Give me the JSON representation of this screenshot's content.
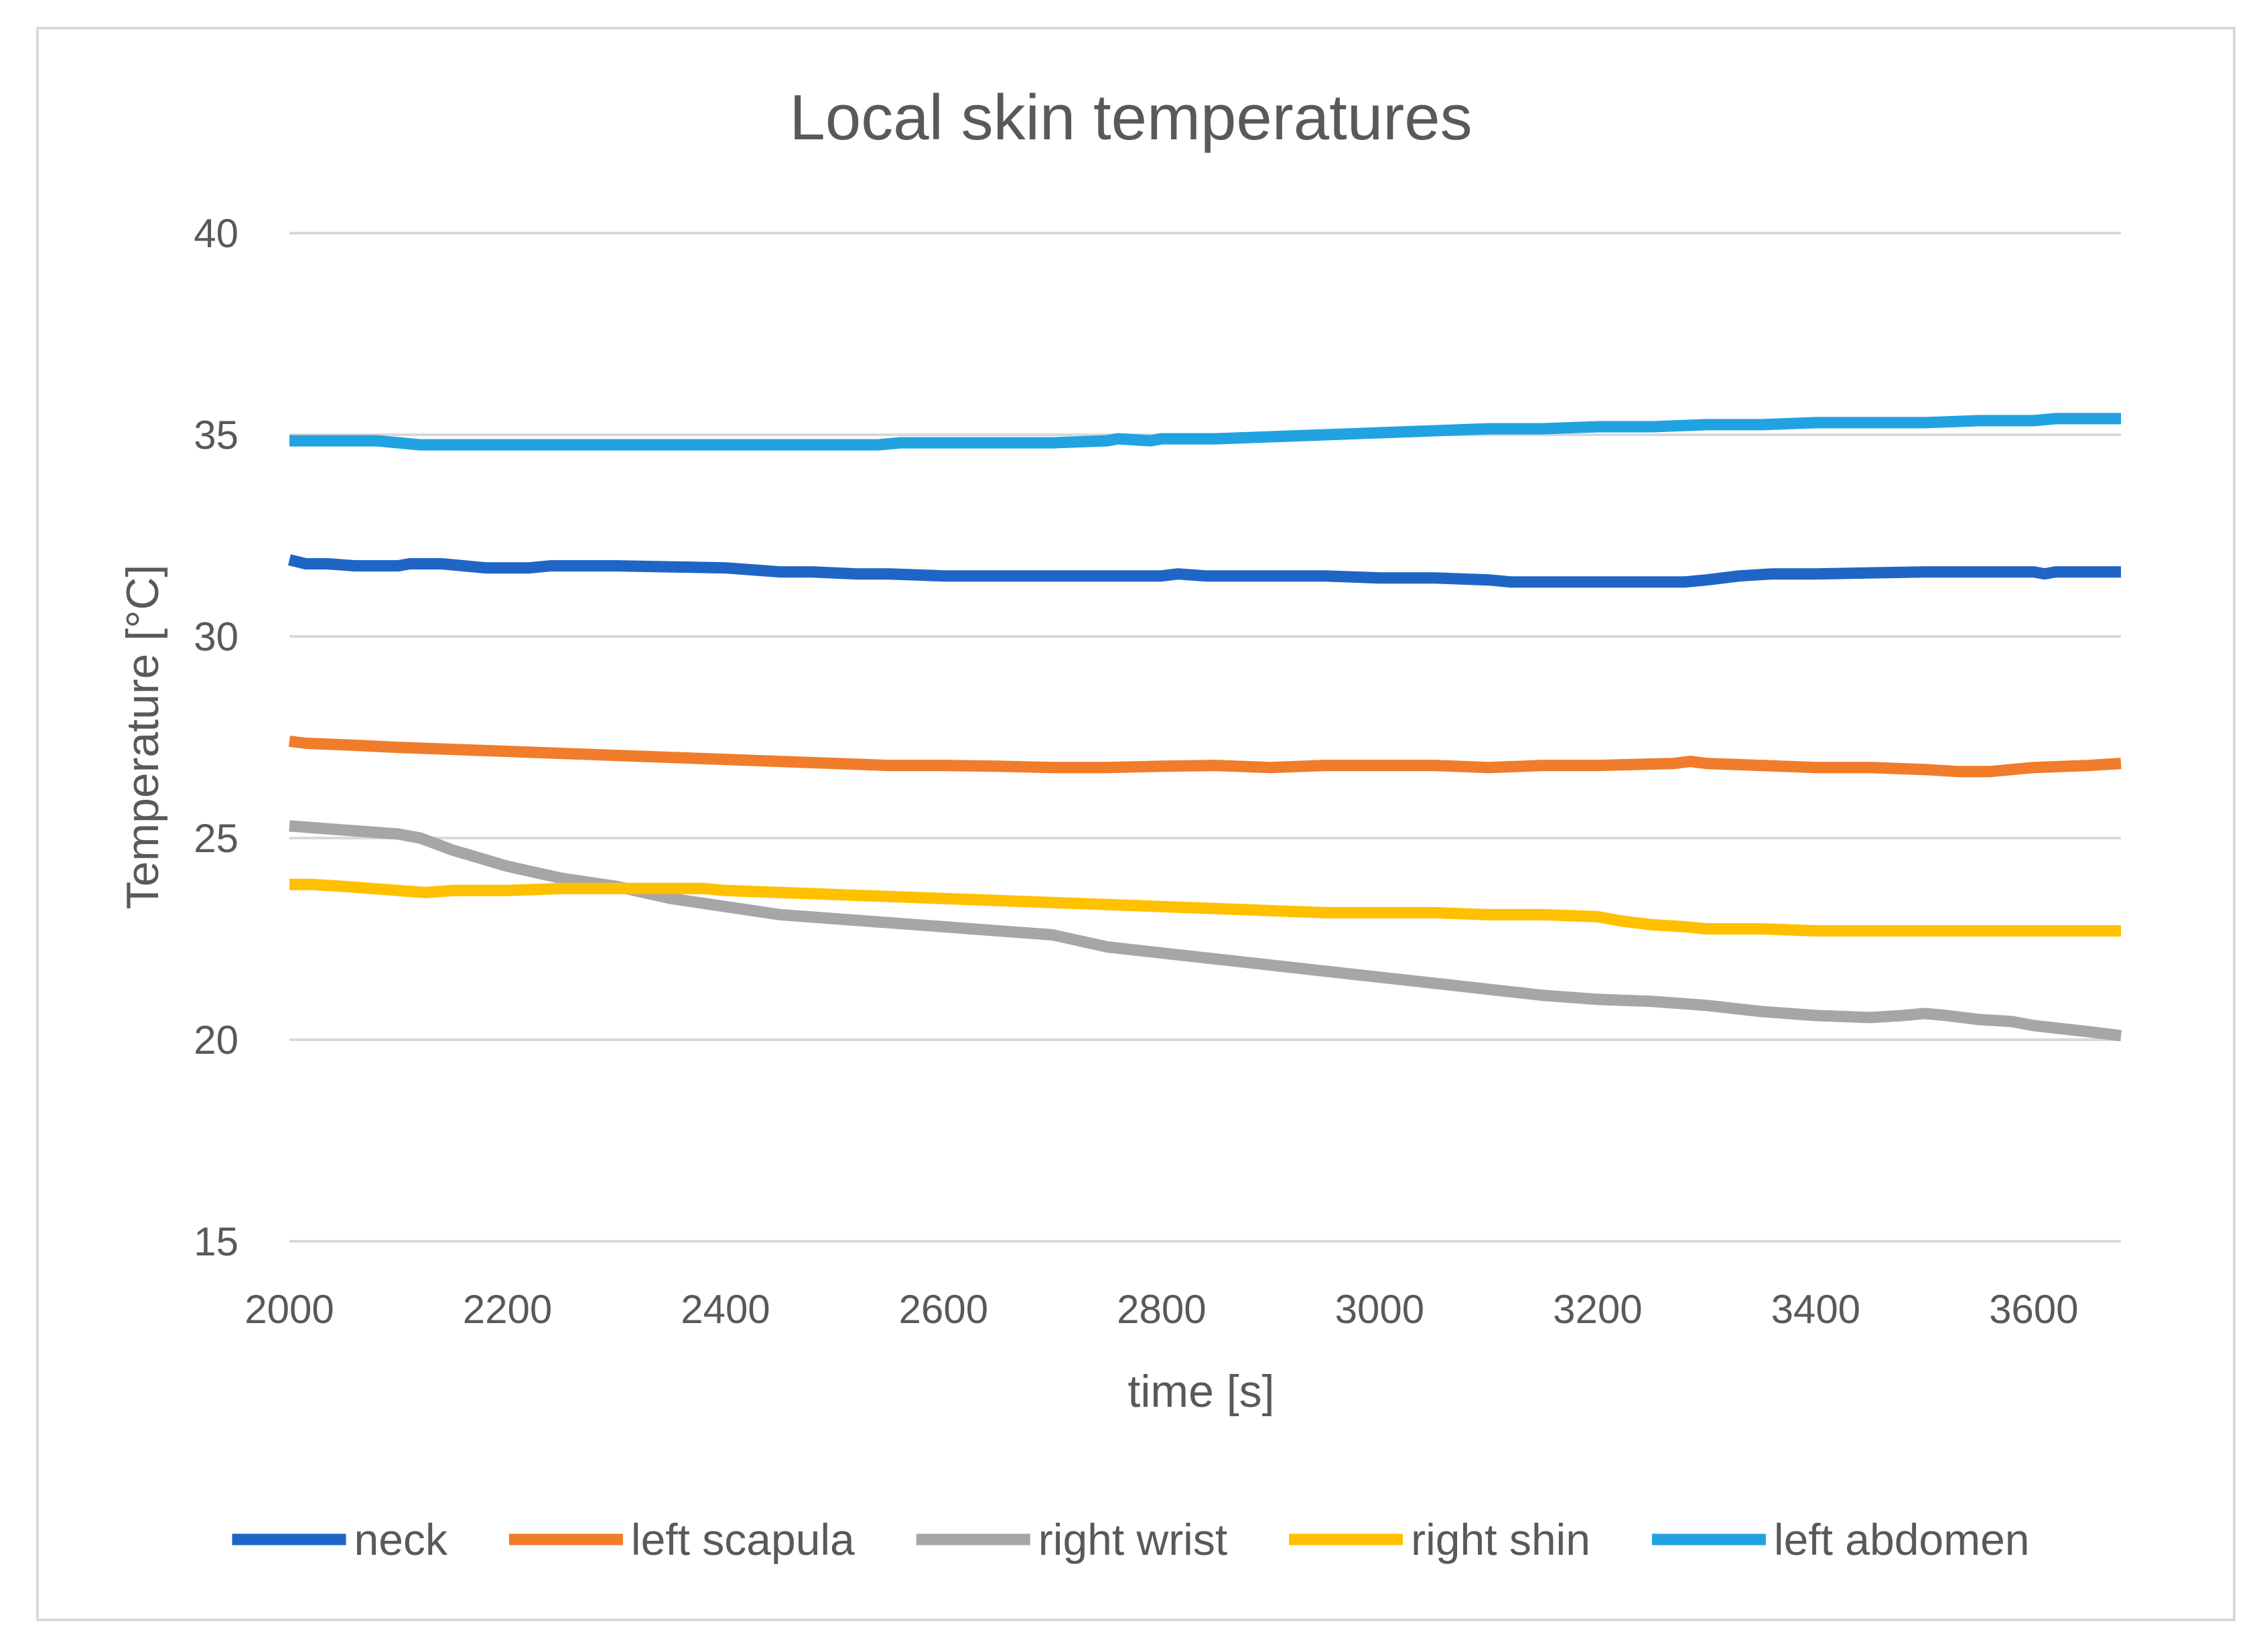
{
  "chart_data": {
    "type": "line",
    "title": "Local skin temperatures",
    "xlabel": "time [s]",
    "ylabel": "Temperature [°C]",
    "xlim": [
      2000,
      3680
    ],
    "ylim": [
      15,
      40
    ],
    "xticks": [
      2000,
      2200,
      2400,
      2600,
      2800,
      3000,
      3200,
      3400,
      3600
    ],
    "yticks": [
      15,
      20,
      25,
      30,
      35,
      40
    ],
    "grid": true,
    "legend_position": "bottom",
    "series": [
      {
        "name": "neck",
        "color": "#1f65c6",
        "x": [
          2000,
          2015,
          2035,
          2060,
          2100,
          2110,
          2140,
          2180,
          2220,
          2240,
          2280,
          2300,
          2400,
          2450,
          2480,
          2520,
          2550,
          2600,
          2700,
          2800,
          2815,
          2840,
          2900,
          2950,
          3000,
          3050,
          3100,
          3120,
          3200,
          3280,
          3300,
          3330,
          3360,
          3400,
          3500,
          3600,
          3610,
          3620,
          3680
        ],
        "values": [
          31.9,
          31.8,
          31.8,
          31.75,
          31.75,
          31.8,
          31.8,
          31.7,
          31.7,
          31.75,
          31.75,
          31.75,
          31.7,
          31.6,
          31.6,
          31.55,
          31.55,
          31.5,
          31.5,
          31.5,
          31.55,
          31.5,
          31.5,
          31.5,
          31.45,
          31.45,
          31.4,
          31.35,
          31.35,
          31.35,
          31.4,
          31.5,
          31.55,
          31.55,
          31.6,
          31.6,
          31.55,
          31.6,
          31.6
        ]
      },
      {
        "name": "left scapula",
        "color": "#f07c2c",
        "x": [
          2000,
          2015,
          2060,
          2100,
          2150,
          2200,
          2250,
          2300,
          2350,
          2400,
          2450,
          2500,
          2550,
          2600,
          2650,
          2700,
          2750,
          2800,
          2850,
          2900,
          2950,
          3000,
          3050,
          3100,
          3150,
          3200,
          3270,
          3285,
          3300,
          3350,
          3400,
          3450,
          3500,
          3530,
          3560,
          3600,
          3650,
          3680
        ],
        "values": [
          27.4,
          27.35,
          27.3,
          27.25,
          27.2,
          27.15,
          27.1,
          27.05,
          27.0,
          26.95,
          26.9,
          26.85,
          26.8,
          26.8,
          26.78,
          26.75,
          26.75,
          26.78,
          26.8,
          26.75,
          26.8,
          26.8,
          26.8,
          26.75,
          26.8,
          26.8,
          26.85,
          26.9,
          26.85,
          26.8,
          26.75,
          26.75,
          26.7,
          26.65,
          26.65,
          26.75,
          26.8,
          26.85
        ]
      },
      {
        "name": "right wrist",
        "color": "#a6a6a6",
        "x": [
          2000,
          2050,
          2100,
          2120,
          2150,
          2200,
          2250,
          2300,
          2350,
          2400,
          2450,
          2500,
          2550,
          2600,
          2650,
          2700,
          2750,
          2800,
          2850,
          2900,
          2950,
          3000,
          3050,
          3100,
          3150,
          3200,
          3250,
          3300,
          3350,
          3400,
          3450,
          3480,
          3500,
          3520,
          3550,
          3580,
          3600,
          3650,
          3680
        ],
        "values": [
          25.3,
          25.2,
          25.1,
          25.0,
          24.7,
          24.3,
          24.0,
          23.8,
          23.5,
          23.3,
          23.1,
          23.0,
          22.9,
          22.8,
          22.7,
          22.6,
          22.3,
          22.15,
          22.0,
          21.85,
          21.7,
          21.55,
          21.4,
          21.25,
          21.1,
          21.0,
          20.95,
          20.85,
          20.7,
          20.6,
          20.55,
          20.6,
          20.65,
          20.6,
          20.5,
          20.45,
          20.35,
          20.2,
          20.1
        ]
      },
      {
        "name": "right shin",
        "color": "#ffc000",
        "x": [
          2000,
          2020,
          2050,
          2100,
          2125,
          2150,
          2200,
          2250,
          2300,
          2380,
          2400,
          2450,
          2500,
          2550,
          2600,
          2650,
          2700,
          2750,
          2800,
          2850,
          2900,
          2950,
          3000,
          3050,
          3100,
          3150,
          3200,
          3220,
          3250,
          3280,
          3300,
          3350,
          3400,
          3450,
          3500,
          3600,
          3680
        ],
        "values": [
          23.85,
          23.85,
          23.8,
          23.7,
          23.65,
          23.7,
          23.7,
          23.75,
          23.75,
          23.75,
          23.7,
          23.65,
          23.6,
          23.55,
          23.5,
          23.45,
          23.4,
          23.35,
          23.3,
          23.25,
          23.2,
          23.15,
          23.15,
          23.15,
          23.1,
          23.1,
          23.05,
          22.95,
          22.85,
          22.8,
          22.75,
          22.75,
          22.7,
          22.7,
          22.7,
          22.7,
          22.7
        ]
      },
      {
        "name": "left abdomen",
        "color": "#21a3e1",
        "x": [
          2000,
          2080,
          2120,
          2200,
          2300,
          2400,
          2500,
          2540,
          2560,
          2600,
          2700,
          2750,
          2760,
          2790,
          2800,
          2850,
          2900,
          2950,
          3000,
          3050,
          3100,
          3150,
          3200,
          3250,
          3300,
          3350,
          3400,
          3450,
          3500,
          3550,
          3600,
          3620,
          3680
        ],
        "values": [
          34.85,
          34.85,
          34.75,
          34.75,
          34.75,
          34.75,
          34.75,
          34.75,
          34.8,
          34.8,
          34.8,
          34.85,
          34.9,
          34.85,
          34.9,
          34.9,
          34.95,
          35.0,
          35.05,
          35.1,
          35.15,
          35.15,
          35.2,
          35.2,
          35.25,
          35.25,
          35.3,
          35.3,
          35.3,
          35.35,
          35.35,
          35.4,
          35.4
        ]
      }
    ]
  }
}
